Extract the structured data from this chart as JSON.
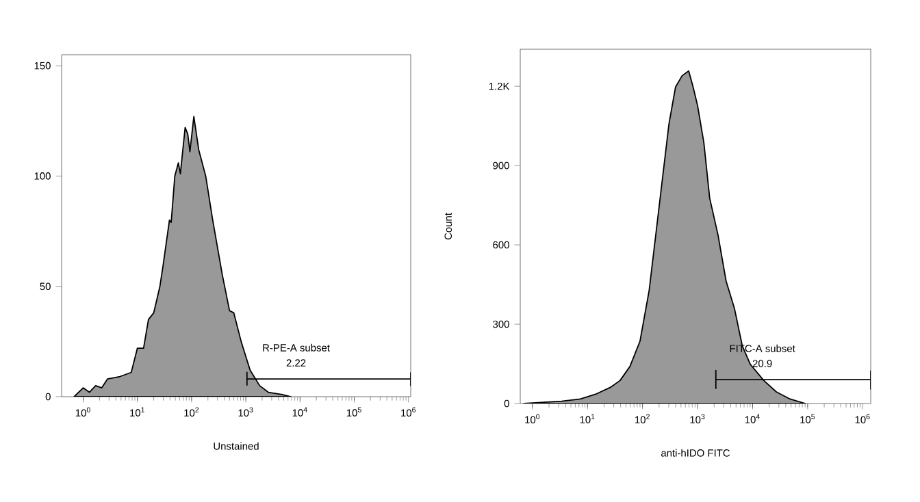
{
  "chart_data": [
    {
      "type": "area",
      "xlabel": "Unstained",
      "log": "x",
      "grid": false,
      "xlim": [
        0.4,
        1100000
      ],
      "ylim": [
        0,
        155
      ],
      "xticks": [
        {
          "value": 1,
          "label": "10$^{0}$"
        },
        {
          "value": 10,
          "label": "10$^{1}$"
        },
        {
          "value": 100,
          "label": "10$^{2}$"
        },
        {
          "value": 1000,
          "label": "10$^{3}$"
        },
        {
          "value": 10000,
          "label": "10$^{4}$"
        },
        {
          "value": 100000,
          "label": "10$^{5}$"
        },
        {
          "value": 1000000,
          "label": "10$^{6}$"
        }
      ],
      "yticks": [
        0,
        50,
        100,
        150
      ],
      "series": [
        {
          "color": "#999999",
          "x": [
            0.68,
            1,
            1.3,
            1.7,
            2.2,
            2.8,
            4.6,
            7.7,
            10,
            13,
            16,
            20,
            26,
            30,
            39,
            42,
            49,
            57,
            62,
            76,
            85,
            93,
            110,
            135,
            182,
            245,
            370,
            500,
            600,
            820,
            1200,
            1800,
            2600,
            4700,
            6800
          ],
          "values": [
            0,
            4,
            2,
            5,
            4,
            8,
            9,
            11,
            22,
            22,
            35,
            38,
            50,
            60,
            80,
            79,
            100,
            106,
            101,
            122,
            119,
            111,
            127,
            112,
            100,
            80,
            55,
            39,
            38,
            25,
            12,
            5,
            2,
            1,
            0
          ]
        },
        {
          "type": "line",
          "color": "#000000",
          "x": [
            1050,
            1050,
            1050,
            1100000,
            1100000,
            1100000
          ],
          "values": [
            5,
            11,
            8,
            8,
            5,
            11
          ]
        }
      ],
      "annotations": [
        "R-PE-A subset",
        "2.22"
      ]
    },
    {
      "type": "area",
      "xlabel": "anti-hIDO FITC",
      "ylabel": "Count",
      "log": "x",
      "grid": false,
      "xlim": [
        0.6,
        1400000
      ],
      "ylim": [
        0,
        1340
      ],
      "xticks": [
        {
          "value": 1,
          "label": "10$^{0}$"
        },
        {
          "value": 10,
          "label": "10$^{1}$"
        },
        {
          "value": 100,
          "label": "10$^{2}$"
        },
        {
          "value": 1000,
          "label": "10$^{3}$"
        },
        {
          "value": 10000,
          "label": "10$^{4}$"
        },
        {
          "value": 100000,
          "label": "10$^{5}$"
        },
        {
          "value": 1000000,
          "label": "10$^{6}$"
        }
      ],
      "yticks": [
        0,
        300,
        600,
        900,
        {
          "value": 1200,
          "label": "1.2K"
        }
      ],
      "series": [
        {
          "color": "#999999",
          "x": [
            0.7,
            3.4,
            7.4,
            14,
            26,
            39,
            59,
            90,
            132,
            174,
            229,
            302,
            398,
            525,
            690,
            830,
            1000,
            1300,
            1660,
            2350,
            3300,
            4700,
            6500,
            9100,
            16000,
            27000,
            48000,
            91000
          ],
          "values": [
            0,
            9,
            17,
            35,
            61,
            87,
            140,
            236,
            428,
            638,
            847,
            1057,
            1197,
            1240,
            1258,
            1197,
            1127,
            987,
            777,
            638,
            463,
            358,
            218,
            148,
            87,
            44,
            17,
            0
          ]
        },
        {
          "type": "line",
          "color": "#000000",
          "x": [
            2150,
            2150,
            2150,
            1400000,
            1400000,
            1400000
          ],
          "values": [
            55,
            125,
            90,
            90,
            55,
            125
          ]
        }
      ],
      "annotations": [
        "FITC-A subset",
        "20.9"
      ]
    }
  ]
}
